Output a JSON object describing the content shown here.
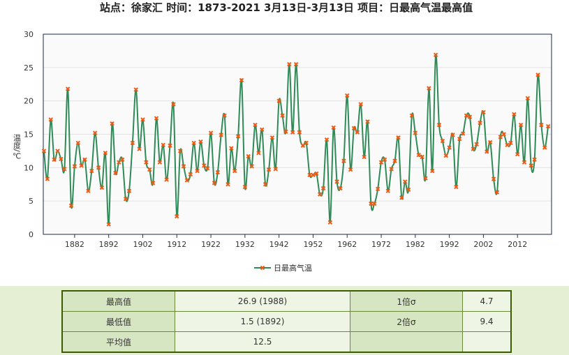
{
  "chart_data": {
    "type": "line",
    "title": "站点：徐家汇 时间：1873-2021  3月13日-3月13日 项目：日最高气温最高值",
    "y_label": "温度/℃",
    "x": [
      1873,
      1874,
      1875,
      1876,
      1877,
      1878,
      1879,
      1880,
      1881,
      1882,
      1883,
      1884,
      1885,
      1886,
      1887,
      1888,
      1889,
      1890,
      1891,
      1892,
      1893,
      1894,
      1895,
      1896,
      1897,
      1898,
      1899,
      1900,
      1901,
      1902,
      1903,
      1904,
      1905,
      1906,
      1907,
      1908,
      1909,
      1910,
      1911,
      1912,
      1913,
      1914,
      1915,
      1916,
      1917,
      1918,
      1919,
      1920,
      1921,
      1922,
      1923,
      1924,
      1925,
      1926,
      1927,
      1928,
      1929,
      1930,
      1931,
      1932,
      1933,
      1934,
      1935,
      1936,
      1937,
      1938,
      1939,
      1940,
      1941,
      1942,
      1943,
      1944,
      1945,
      1946,
      1947,
      1948,
      1949,
      1950,
      1951,
      1952,
      1953,
      1954,
      1955,
      1956,
      1957,
      1958,
      1959,
      1960,
      1961,
      1962,
      1963,
      1964,
      1965,
      1966,
      1967,
      1968,
      1969,
      1970,
      1971,
      1972,
      1973,
      1974,
      1975,
      1976,
      1977,
      1978,
      1979,
      1980,
      1981,
      1982,
      1983,
      1984,
      1985,
      1986,
      1987,
      1988,
      1989,
      1990,
      1991,
      1992,
      1993,
      1994,
      1995,
      1996,
      1997,
      1998,
      1999,
      2000,
      2001,
      2002,
      2003,
      2004,
      2005,
      2006,
      2007,
      2008,
      2009,
      2010,
      2011,
      2012,
      2013,
      2014,
      2015,
      2016,
      2017,
      2018,
      2019,
      2020,
      2021
    ],
    "series": [
      {
        "name": "日最高气温",
        "color": "#2e8b57",
        "marker_color": "#f05a14",
        "values": [
          12.5,
          8.3,
          17.2,
          11.2,
          12.5,
          11.3,
          9.8,
          21.8,
          4.3,
          10.2,
          13.7,
          10.3,
          11.2,
          6.5,
          9.5,
          15.2,
          10.0,
          7.0,
          12.2,
          1.5,
          16.6,
          9.2,
          10.8,
          11.2,
          5.3,
          6.5,
          13.7,
          21.7,
          12.8,
          17.2,
          10.8,
          9.7,
          7.7,
          17.4,
          10.8,
          13.4,
          8.2,
          13.3,
          19.5,
          2.7,
          12.5,
          10.2,
          8.1,
          9.0,
          13.7,
          9.5,
          13.9,
          10.3,
          9.9,
          15.2,
          7.7,
          9.3,
          14.9,
          17.8,
          7.5,
          12.9,
          9.5,
          14.7,
          23.1,
          7.1,
          11.7,
          10.2,
          16.4,
          12.2,
          15.7,
          7.5,
          9.7,
          14.5,
          9.8,
          20.0,
          17.8,
          15.4,
          25.5,
          15.3,
          25.5,
          15.3,
          13.3,
          13.7,
          8.9,
          8.9,
          9.1,
          6.0,
          6.9,
          14.2,
          1.8,
          16.0,
          7.9,
          6.9,
          11.0,
          20.8,
          9.7,
          15.9,
          15.3,
          19.5,
          11.6,
          16.9,
          4.6,
          4.6,
          6.8,
          10.8,
          11.2,
          6.5,
          9.8,
          11.0,
          14.5,
          5.5,
          7.9,
          6.7,
          17.8,
          15.2,
          11.9,
          11.6,
          8.4,
          21.9,
          9.5,
          26.9,
          16.4,
          14.0,
          11.8,
          13.0,
          14.9,
          7.1,
          14.3,
          15.1,
          17.8,
          17.6,
          12.8,
          13.5,
          16.7,
          18.3,
          12.4,
          13.8,
          8.3,
          6.3,
          14.6,
          15.0,
          13.4,
          13.7,
          18.0,
          12.0,
          16.4,
          10.8,
          20.4,
          10.3,
          11.2,
          23.9,
          16.4,
          13.0,
          16.2
        ]
      }
    ],
    "xlim": [
      1872.8,
      2022.0
    ],
    "xticks": [
      1882,
      1892,
      1902,
      1912,
      1922,
      1932,
      1942,
      1952,
      1962,
      1972,
      1982,
      1992,
      2002,
      2012
    ],
    "ylim": [
      0,
      30
    ],
    "yticks": [
      0,
      5,
      10,
      15,
      20,
      25,
      30
    ],
    "grid": true,
    "legend": "bottom"
  },
  "table": {
    "rows": [
      [
        "最高值",
        "26.9 (1988)",
        "1倍σ",
        "4.7"
      ],
      [
        "最低值",
        "1.5 (1892)",
        "2倍σ",
        "9.4"
      ],
      [
        "平均值",
        "12.5"
      ]
    ]
  }
}
